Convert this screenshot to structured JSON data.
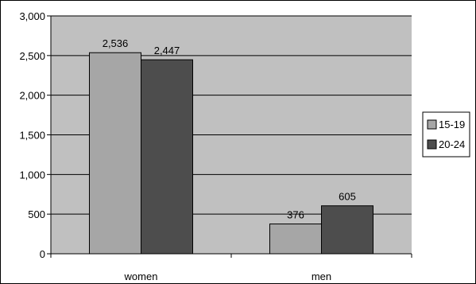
{
  "chart_data": {
    "type": "bar",
    "categories": [
      "women",
      "men"
    ],
    "series": [
      {
        "name": "15-19",
        "values": [
          2536,
          376
        ],
        "color": "#a6a6a6"
      },
      {
        "name": "20-24",
        "values": [
          2447,
          605
        ],
        "color": "#4d4d4d"
      }
    ],
    "data_labels": [
      [
        "2,536",
        "376"
      ],
      [
        "2,447",
        "605"
      ]
    ],
    "y_ticks": [
      0,
      500,
      1000,
      1500,
      2000,
      2500,
      3000
    ],
    "y_tick_labels": [
      "0",
      "500",
      "1,000",
      "1,500",
      "2,000",
      "2,500",
      "3,000"
    ],
    "ylim": [
      0,
      3000
    ],
    "grid": true,
    "plot_background": "#c0c0c0",
    "legend_position": "right"
  }
}
